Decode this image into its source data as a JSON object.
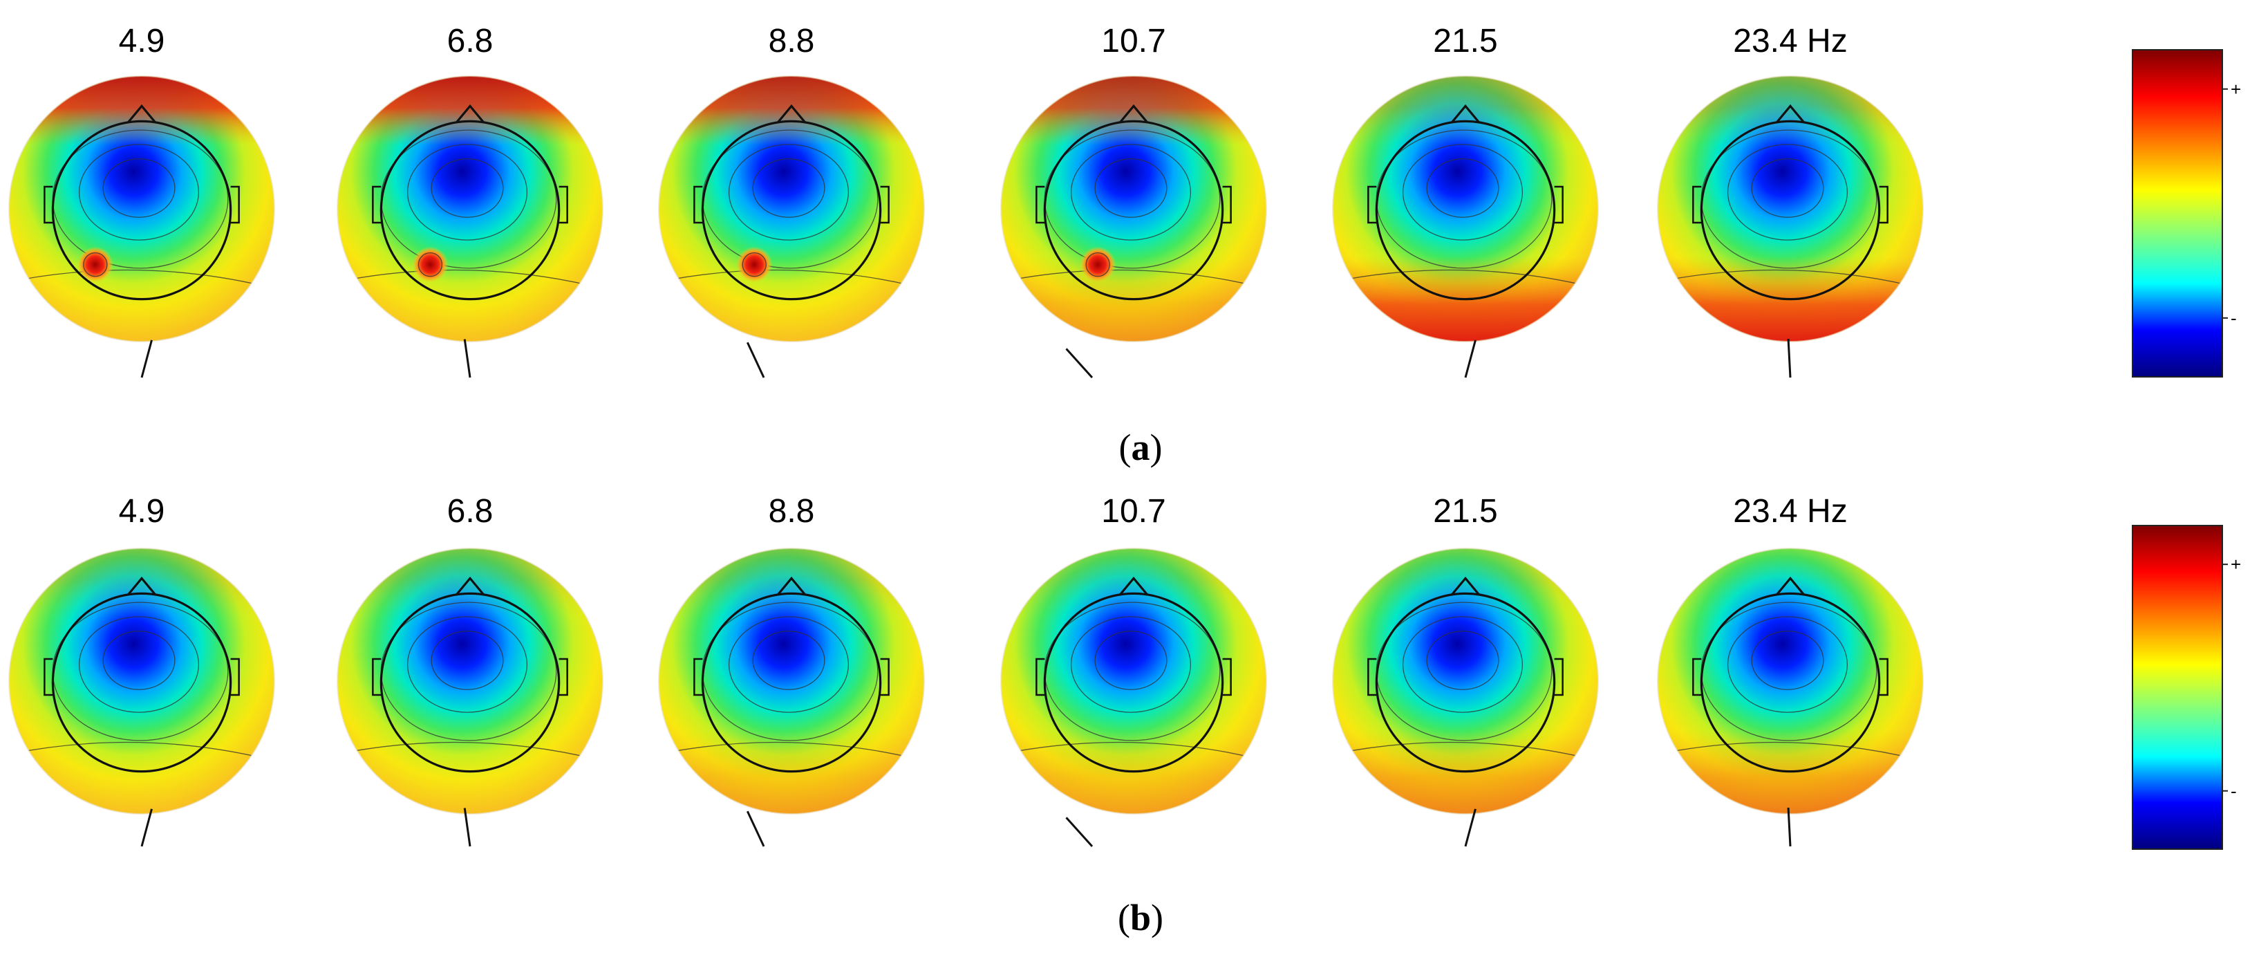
{
  "figure": {
    "rows": [
      {
        "panel_label_prefix": "(",
        "panel_label_letter": "a",
        "panel_label_suffix": ")",
        "maps": [
          {
            "label": "4.9",
            "hot_cap": 0.95,
            "hot_back": 0.0,
            "dipole": true,
            "dipole_x": -0.35
          },
          {
            "label": "6.8",
            "hot_cap": 0.95,
            "hot_back": 0.0,
            "dipole": true,
            "dipole_x": -0.3
          },
          {
            "label": "8.8",
            "hot_cap": 0.9,
            "hot_back": 0.0,
            "dipole": true,
            "dipole_x": -0.28
          },
          {
            "label": "10.7",
            "hot_cap": 0.85,
            "hot_back": 0.25,
            "dipole": true,
            "dipole_x": -0.27
          },
          {
            "label": "21.5",
            "hot_cap": 0.25,
            "hot_back": 0.95,
            "dipole": false,
            "dipole_x": 0.0
          },
          {
            "label": "23.4 Hz",
            "hot_cap": 0.25,
            "hot_back": 0.95,
            "dipole": false,
            "dipole_x": 0.0
          }
        ]
      },
      {
        "panel_label_prefix": "(",
        "panel_label_letter": "b",
        "panel_label_suffix": ")",
        "maps": [
          {
            "label": "4.9",
            "hot_cap": 0.15,
            "hot_back": 0.0,
            "dipole": false,
            "dipole_x": 0.0
          },
          {
            "label": "6.8",
            "hot_cap": 0.15,
            "hot_back": 0.0,
            "dipole": false,
            "dipole_x": 0.0
          },
          {
            "label": "8.8",
            "hot_cap": 0.15,
            "hot_back": 0.2,
            "dipole": false,
            "dipole_x": 0.0
          },
          {
            "label": "10.7",
            "hot_cap": 0.1,
            "hot_back": 0.2,
            "dipole": false,
            "dipole_x": 0.0
          },
          {
            "label": "21.5",
            "hot_cap": 0.1,
            "hot_back": 0.35,
            "dipole": false,
            "dipole_x": 0.0
          },
          {
            "label": "23.4 Hz",
            "hot_cap": 0.05,
            "hot_back": 0.4,
            "dipole": false,
            "dipole_x": 0.0
          }
        ]
      }
    ],
    "colorbar": {
      "tick_plus": "+",
      "tick_minus": "-",
      "colors": [
        "#00007f",
        "#0000ff",
        "#00ffff",
        "#7fff7f",
        "#ffff00",
        "#ff7f00",
        "#ff0000",
        "#7f0000"
      ]
    },
    "dipole_directions": [
      {
        "value": "slight-left",
        "angle_deg": -15
      },
      {
        "value": "slight-right",
        "angle_deg": 8
      },
      {
        "value": "right",
        "angle_deg": 25
      },
      {
        "value": "strong-right",
        "angle_deg": 42
      },
      {
        "value": "slight-left",
        "angle_deg": -15
      },
      {
        "value": "vertical",
        "angle_deg": 3
      }
    ]
  }
}
